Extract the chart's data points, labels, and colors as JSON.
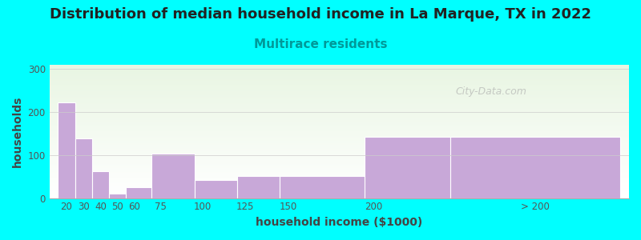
{
  "title": "Distribution of median household income in La Marque, TX in 2022",
  "subtitle": "Multirace residents",
  "xlabel": "household income ($1000)",
  "ylabel": "households",
  "background_color": "#00FFFF",
  "plot_bg_top": "#e8f5e2",
  "plot_bg_bottom": "#ffffff",
  "bar_color": "#c8a8d8",
  "categories": [
    "20",
    "30",
    "40",
    "50",
    "60",
    "75",
    "100",
    "125",
    "150",
    "200",
    "> 200"
  ],
  "values": [
    222,
    138,
    63,
    10,
    25,
    104,
    42,
    52,
    52,
    143,
    143
  ],
  "bar_lefts": [
    15,
    25,
    35,
    45,
    55,
    70,
    95,
    120,
    145,
    195,
    245
  ],
  "bar_widths": [
    10,
    10,
    10,
    10,
    15,
    25,
    25,
    25,
    50,
    50,
    100
  ],
  "xlim": [
    10,
    350
  ],
  "tick_positions": [
    20,
    30,
    40,
    50,
    60,
    75,
    100,
    125,
    150,
    200,
    295
  ],
  "tick_labels": [
    "20",
    "30",
    "40",
    "50",
    "60",
    "75",
    "100",
    "125",
    "150",
    "200",
    "> 200"
  ],
  "ylim": [
    0,
    310
  ],
  "yticks": [
    0,
    100,
    200,
    300
  ],
  "title_fontsize": 13,
  "subtitle_fontsize": 11,
  "axis_label_fontsize": 10,
  "tick_fontsize": 8.5,
  "watermark_text": "City-Data.com"
}
